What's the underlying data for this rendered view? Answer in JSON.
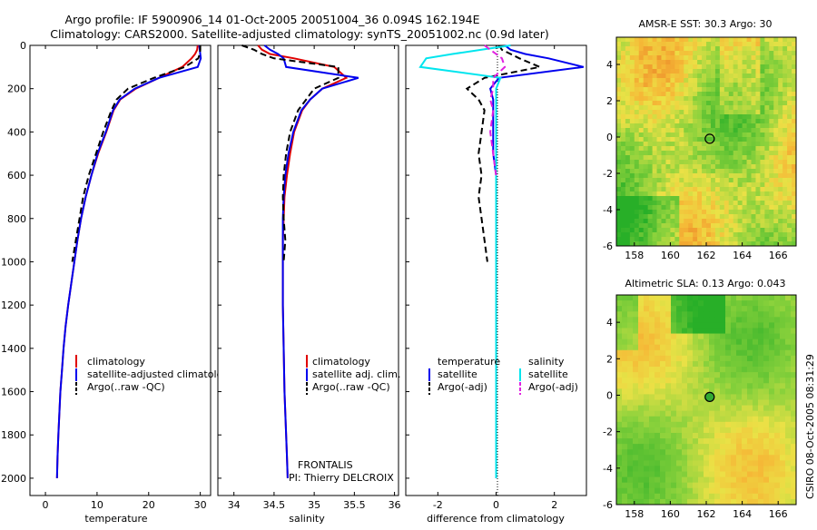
{
  "header": {
    "line1": "Argo profile: IF 5900906_14 01-Oct-2005 20051004_36 0.094S 162.194E",
    "line2": "Climatology: CARS2000. Satellite-adjusted climatology: synTS_20051002.nc (0.9d later)"
  },
  "colors": {
    "clim": "#e00000",
    "sat": "#0000ee",
    "argo": "#000000",
    "sat_diff_s": "#00e5ee",
    "argo_diff_s": "#e020e0"
  },
  "chart_data": [
    {
      "type": "line",
      "name": "temperature-panel",
      "xlabel": "temperature",
      "ylabel": "",
      "xlim": [
        -3,
        32
      ],
      "ylim": [
        2080,
        0
      ],
      "y_reversed": true,
      "xticks": [
        0,
        10,
        20,
        30
      ],
      "yticks": [
        0,
        200,
        400,
        600,
        800,
        1000,
        1200,
        1400,
        1600,
        1800,
        2000
      ],
      "legend": [
        "climatology",
        "satellite-adjusted climatology",
        "Argo(..raw -QC)"
      ],
      "legend_position": "lower-middle",
      "series": [
        {
          "name": "climatology",
          "style": "solid",
          "color_key": "clim",
          "x": [
            29.5,
            29.4,
            29.0,
            28.3,
            26.5,
            22,
            17.5,
            14.5,
            13.2,
            11.8,
            10.2,
            8.9,
            7.8,
            6.9,
            6.2,
            5.6,
            5.0,
            4.4,
            3.9,
            3.5,
            3.2,
            2.9,
            2.7,
            2.5,
            2.35,
            2.25
          ],
          "y": [
            0,
            20,
            40,
            60,
            100,
            150,
            200,
            250,
            300,
            400,
            500,
            600,
            700,
            800,
            900,
            1000,
            1100,
            1200,
            1300,
            1400,
            1500,
            1600,
            1700,
            1800,
            1900,
            2000
          ]
        },
        {
          "name": "satellite-adjusted climatology",
          "style": "solid",
          "color_key": "sat",
          "x": [
            29.8,
            29.9,
            30.0,
            30.1,
            29.5,
            22,
            17.3,
            14.4,
            13.1,
            11.7,
            10.1,
            8.9,
            7.8,
            6.9,
            6.2,
            5.6,
            5.0,
            4.4,
            3.9,
            3.5,
            3.2,
            2.9,
            2.7,
            2.5,
            2.35,
            2.25
          ],
          "y": [
            0,
            20,
            40,
            60,
            100,
            150,
            200,
            250,
            300,
            400,
            500,
            600,
            700,
            800,
            900,
            1000,
            1100,
            1200,
            1300,
            1400,
            1500,
            1600,
            1700,
            1800,
            1900,
            2000
          ]
        },
        {
          "name": "Argo(..raw -QC)",
          "style": "dashed",
          "color_key": "argo",
          "x": [
            30.0,
            30.0,
            29.9,
            29.6,
            27,
            21,
            16,
            13.8,
            12.8,
            11.2,
            9.8,
            8.4,
            7.3,
            6.6,
            5.9,
            5.2
          ],
          "y": [
            0,
            20,
            40,
            60,
            100,
            150,
            200,
            250,
            300,
            400,
            500,
            600,
            700,
            800,
            900,
            1000
          ]
        }
      ]
    },
    {
      "type": "line",
      "name": "salinity-panel",
      "xlabel": "salinity",
      "xlim": [
        33.8,
        36.05
      ],
      "ylim": [
        2080,
        0
      ],
      "y_reversed": true,
      "xticks": [
        34,
        34.5,
        35,
        35.5,
        36
      ],
      "legend": [
        "climatology",
        "satellite adj. clim.",
        "Argo(..raw -QC)"
      ],
      "legend_position": "lower-middle",
      "annotation": [
        "FRONTALIS",
        "PI: Thierry DELCROIX"
      ],
      "series": [
        {
          "name": "climatology",
          "style": "solid",
          "color_key": "clim",
          "x": [
            34.3,
            34.35,
            34.45,
            34.75,
            35.25,
            35.4,
            35.1,
            34.95,
            34.85,
            34.75,
            34.7,
            34.66,
            34.63,
            34.62,
            34.61,
            34.61,
            34.61,
            34.62,
            34.63,
            34.64,
            34.65,
            34.66,
            34.67
          ],
          "y": [
            0,
            20,
            40,
            60,
            100,
            150,
            200,
            250,
            300,
            400,
            500,
            600,
            700,
            800,
            900,
            1000,
            1200,
            1400,
            1600,
            1700,
            1800,
            1900,
            2000
          ]
        },
        {
          "name": "satellite adj. clim.",
          "style": "solid",
          "color_key": "sat",
          "x": [
            34.38,
            34.45,
            34.55,
            34.62,
            34.65,
            35.55,
            35.1,
            34.95,
            34.84,
            34.74,
            34.68,
            34.64,
            34.62,
            34.61,
            34.61,
            34.61,
            34.61,
            34.62,
            34.63,
            34.64,
            34.65,
            34.66,
            34.67
          ],
          "y": [
            0,
            20,
            40,
            60,
            100,
            150,
            200,
            250,
            300,
            400,
            500,
            600,
            700,
            800,
            900,
            1000,
            1200,
            1400,
            1600,
            1700,
            1800,
            1900,
            2000
          ]
        },
        {
          "name": "Argo(..raw -QC)",
          "style": "dashed",
          "color_key": "argo",
          "x": [
            34.1,
            34.25,
            34.35,
            34.5,
            35.3,
            35.3,
            35.0,
            34.9,
            34.8,
            34.7,
            34.65,
            34.62,
            34.61,
            34.62,
            34.64,
            34.62
          ],
          "y": [
            0,
            20,
            40,
            60,
            100,
            150,
            200,
            250,
            300,
            400,
            500,
            600,
            700,
            800,
            900,
            1000
          ]
        }
      ]
    },
    {
      "type": "line",
      "name": "difference-panel",
      "xlabel": "difference from climatology",
      "xlim": [
        -3.1,
        3.1
      ],
      "ylim": [
        2080,
        0
      ],
      "y_reversed": true,
      "xticks": [
        -2,
        0,
        2
      ],
      "legend_temperature": [
        "temperature",
        "satellite",
        "Argo(-adj)"
      ],
      "legend_salinity": [
        "salinity",
        "satellite",
        "Argo(-adj)"
      ],
      "legend_position": "lower-middle",
      "series": [
        {
          "name": "temperature satellite",
          "style": "solid",
          "color_key": "sat",
          "x": [
            0.3,
            0.5,
            1.0,
            1.8,
            3.0,
            0.1,
            -0.2,
            -0.1,
            -0.1,
            -0.1,
            -0.1,
            0.0,
            0.0,
            0.0,
            0.0,
            0.0,
            0.0,
            0.0,
            0.0,
            0.0,
            0.0
          ],
          "y": [
            0,
            20,
            40,
            60,
            100,
            150,
            200,
            250,
            300,
            400,
            500,
            600,
            700,
            800,
            1000,
            1200,
            1400,
            1600,
            1800,
            1900,
            2000
          ]
        },
        {
          "name": "temperature Argo(-adj)",
          "style": "dashed",
          "color_key": "argo",
          "x": [
            0.1,
            0.2,
            0.5,
            0.8,
            1.5,
            -0.4,
            -1.0,
            -0.6,
            -0.4,
            -0.5,
            -0.6,
            -0.5,
            -0.6,
            -0.5,
            -0.3
          ],
          "y": [
            0,
            20,
            40,
            60,
            100,
            150,
            200,
            250,
            300,
            400,
            500,
            600,
            700,
            800,
            1000
          ]
        },
        {
          "name": "salinity satellite",
          "style": "solid",
          "color_key": "sat_diff_s",
          "x": [
            0.5,
            -0.5,
            -1.5,
            -2.4,
            -2.6,
            0.15,
            0.0,
            0.0,
            0.0,
            0.0,
            0.0,
            0.0,
            0.0,
            0.0,
            0.0,
            0.0,
            0.0,
            0.0,
            0.0,
            0.0
          ],
          "y": [
            0,
            20,
            40,
            60,
            100,
            150,
            200,
            250,
            300,
            400,
            500,
            600,
            700,
            800,
            1000,
            1200,
            1400,
            1600,
            1800,
            2000
          ]
        },
        {
          "name": "salinity Argo(-adj)",
          "style": "dashed",
          "color_key": "argo_diff_s",
          "x": [
            -0.4,
            -0.2,
            0.0,
            0.2,
            0.3,
            -0.1,
            -0.1,
            -0.2,
            -0.1,
            -0.2,
            -0.1,
            0.0
          ],
          "y": [
            0,
            20,
            40,
            60,
            100,
            150,
            200,
            250,
            300,
            400,
            500,
            600
          ]
        }
      ]
    },
    {
      "type": "heatmap",
      "name": "sst-map",
      "title": "AMSR-E SST: 30.3 Argo: 30",
      "xlim": [
        157,
        167
      ],
      "ylim": [
        -6,
        5.5
      ],
      "xticks": [
        158,
        160,
        162,
        164,
        166
      ],
      "yticks": [
        -6,
        -4,
        -2,
        0,
        2,
        4
      ],
      "marker": {
        "lon": 162.194,
        "lat": -0.094
      }
    },
    {
      "type": "heatmap",
      "name": "sla-map",
      "title": "Altimetric SLA: 0.13 Argo: 0.043",
      "xlim": [
        157,
        167
      ],
      "ylim": [
        -6,
        5.5
      ],
      "xticks": [
        158,
        160,
        162,
        164,
        166
      ],
      "yticks": [
        -6,
        -4,
        -2,
        0,
        2,
        4
      ],
      "marker": {
        "lon": 162.194,
        "lat": -0.094
      }
    }
  ],
  "side_label": "CSIRO 08-Oct-2005 08:31:29"
}
